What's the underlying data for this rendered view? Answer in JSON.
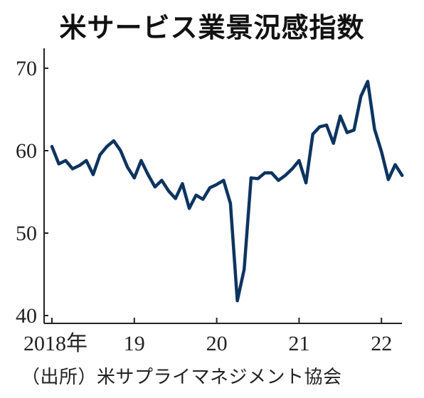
{
  "title": "米サービス業景況感指数",
  "source": "（出所）米サプライマネジメント協会",
  "colors": {
    "line": "#0d3460",
    "axis": "#222222"
  },
  "chart_data": {
    "type": "line",
    "title": "米サービス業景況感指数",
    "xlabel": "",
    "ylabel": "",
    "ylim": [
      39,
      72
    ],
    "yticks": [
      40,
      50,
      60,
      70
    ],
    "xlim": [
      0,
      53
    ],
    "xticks": [
      {
        "x": 0,
        "label": "2018年"
      },
      {
        "x": 12,
        "label": "19"
      },
      {
        "x": 24,
        "label": "20"
      },
      {
        "x": 36,
        "label": "21"
      },
      {
        "x": 48,
        "label": "22"
      }
    ],
    "grid": false,
    "series": [
      {
        "values": [
          60.5,
          58.4,
          58.8,
          57.8,
          58.2,
          58.8,
          57.1,
          59.5,
          60.5,
          61.2,
          60.0,
          58.0,
          56.7,
          58.8,
          57.1,
          55.6,
          56.4,
          55.1,
          54.2,
          56.0,
          53.0,
          54.6,
          54.1,
          55.5,
          55.9,
          56.4,
          53.6,
          41.8,
          45.6,
          56.7,
          56.6,
          57.3,
          57.3,
          56.4,
          57.0,
          57.8,
          58.8,
          56.1,
          62.0,
          62.9,
          63.1,
          60.9,
          64.2,
          62.2,
          62.5,
          66.6,
          68.4,
          62.6,
          59.9,
          56.5,
          58.3,
          57.0
        ]
      }
    ]
  }
}
